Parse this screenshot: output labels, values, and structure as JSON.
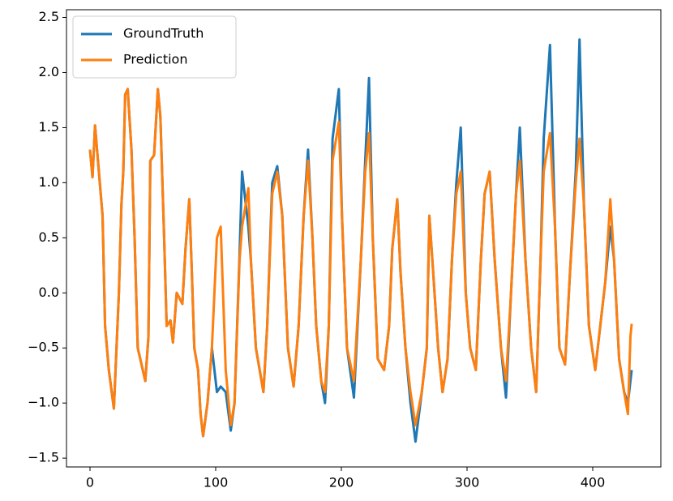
{
  "chart_data": {
    "type": "line",
    "x": [
      0,
      2,
      4,
      10,
      12,
      15,
      19,
      23,
      25,
      26.5,
      28,
      30,
      33,
      35.5,
      38,
      42,
      44,
      46.5,
      48,
      51,
      54,
      56,
      59,
      61,
      64,
      66,
      69,
      73.5,
      76,
      79,
      81,
      83,
      86,
      88,
      90,
      93.5,
      97,
      101,
      104,
      108,
      112,
      115,
      119,
      121,
      126,
      128,
      132,
      135,
      138,
      141,
      145,
      149,
      153,
      157.5,
      162,
      166,
      170,
      173.5,
      177,
      180,
      184,
      187,
      190,
      193,
      198,
      200.5,
      204.5,
      210,
      215.5,
      219,
      222,
      225,
      229,
      234,
      238,
      240.5,
      244.5,
      247,
      251,
      255,
      259,
      264,
      268,
      270,
      273,
      277,
      280.5,
      284.5,
      288,
      291.5,
      295,
      299,
      302.5,
      307,
      311,
      314,
      318,
      322,
      327,
      331,
      335,
      339,
      342,
      346.5,
      351,
      355,
      358.5,
      361,
      366,
      370,
      373.5,
      378,
      382,
      386.5,
      389.5,
      393,
      397,
      402,
      406,
      410,
      414,
      417,
      421,
      425,
      428,
      430,
      431
    ],
    "series": [
      {
        "name": "GroundTruth",
        "color": "#1f77b4",
        "values": [
          1.3,
          1.05,
          1.52,
          0.7,
          -0.3,
          -0.7,
          -1.05,
          0.0,
          0.8,
          1.1,
          1.8,
          1.85,
          1.3,
          0.5,
          -0.5,
          -0.7,
          -0.8,
          -0.4,
          1.2,
          1.25,
          1.85,
          1.6,
          0.5,
          -0.3,
          -0.25,
          -0.45,
          0.0,
          -0.1,
          0.4,
          0.85,
          0.2,
          -0.5,
          -0.7,
          -1.1,
          -1.3,
          -1.0,
          -0.5,
          -0.9,
          -0.85,
          -0.9,
          -1.25,
          -1.0,
          0.35,
          1.1,
          0.6,
          0.3,
          -0.5,
          -0.7,
          -0.9,
          -0.3,
          1.0,
          1.15,
          0.7,
          -0.5,
          -0.85,
          -0.3,
          0.7,
          1.3,
          0.5,
          -0.3,
          -0.8,
          -1.0,
          -0.3,
          1.4,
          1.85,
          0.7,
          -0.5,
          -0.95,
          0.3,
          1.2,
          1.95,
          0.5,
          -0.6,
          -0.7,
          -0.3,
          0.4,
          0.85,
          0.2,
          -0.5,
          -1.0,
          -1.35,
          -0.9,
          -0.5,
          0.7,
          0.2,
          -0.5,
          -0.9,
          -0.6,
          0.3,
          1.0,
          1.5,
          0.0,
          -0.5,
          -0.7,
          0.3,
          0.9,
          1.1,
          0.3,
          -0.5,
          -0.95,
          0.0,
          0.9,
          1.5,
          0.3,
          -0.5,
          -0.9,
          0.3,
          1.4,
          2.25,
          0.6,
          -0.5,
          -0.65,
          0.2,
          1.1,
          2.3,
          0.8,
          -0.3,
          -0.7,
          -0.3,
          0.1,
          0.6,
          0.3,
          -0.6,
          -0.9,
          -1.0,
          -0.8,
          -0.7
        ]
      },
      {
        "name": "Prediction",
        "color": "#ff7f0e",
        "values": [
          1.3,
          1.05,
          1.52,
          0.7,
          -0.3,
          -0.7,
          -1.05,
          0.0,
          0.8,
          1.1,
          1.8,
          1.85,
          1.3,
          0.5,
          -0.5,
          -0.7,
          -0.8,
          -0.4,
          1.2,
          1.25,
          1.85,
          1.6,
          0.5,
          -0.3,
          -0.25,
          -0.45,
          0.0,
          -0.1,
          0.4,
          0.85,
          0.2,
          -0.5,
          -0.7,
          -1.1,
          -1.3,
          -1.0,
          -0.5,
          0.5,
          0.6,
          -0.7,
          -1.2,
          -1.0,
          0.3,
          0.6,
          0.95,
          0.3,
          -0.5,
          -0.7,
          -0.9,
          -0.3,
          0.9,
          1.1,
          0.7,
          -0.5,
          -0.85,
          -0.3,
          0.7,
          1.2,
          0.5,
          -0.3,
          -0.8,
          -0.9,
          -0.3,
          1.2,
          1.55,
          0.7,
          -0.5,
          -0.8,
          0.3,
          1.1,
          1.45,
          0.5,
          -0.6,
          -0.7,
          -0.3,
          0.4,
          0.85,
          0.2,
          -0.5,
          -0.9,
          -1.2,
          -0.9,
          -0.5,
          0.7,
          0.2,
          -0.5,
          -0.9,
          -0.6,
          0.3,
          0.9,
          1.1,
          0.0,
          -0.5,
          -0.7,
          0.3,
          0.9,
          1.1,
          0.3,
          -0.5,
          -0.8,
          0.0,
          0.9,
          1.2,
          0.3,
          -0.5,
          -0.9,
          0.3,
          1.1,
          1.45,
          0.6,
          -0.5,
          -0.65,
          0.2,
          1.0,
          1.4,
          0.8,
          -0.3,
          -0.7,
          -0.3,
          0.1,
          0.85,
          0.3,
          -0.6,
          -0.9,
          -1.1,
          -0.4,
          -0.28
        ]
      }
    ],
    "xlim": [
      -18.7,
      454.2
    ],
    "xticks": [
      0,
      100,
      200,
      300,
      400
    ],
    "ylim": [
      -1.58,
      2.57
    ],
    "yticks": [
      {
        "value": -1.5,
        "label": "−1.5"
      },
      {
        "value": -1.0,
        "label": "−1.0"
      },
      {
        "value": -0.5,
        "label": "−0.5"
      },
      {
        "value": 0,
        "label": "0.0"
      },
      0.5,
      {
        "value": 1.0,
        "label": "1.0"
      },
      1.5,
      {
        "value": 2.0,
        "label": "2.0"
      },
      2.5
    ],
    "legend": "upper-left",
    "grid": false
  }
}
